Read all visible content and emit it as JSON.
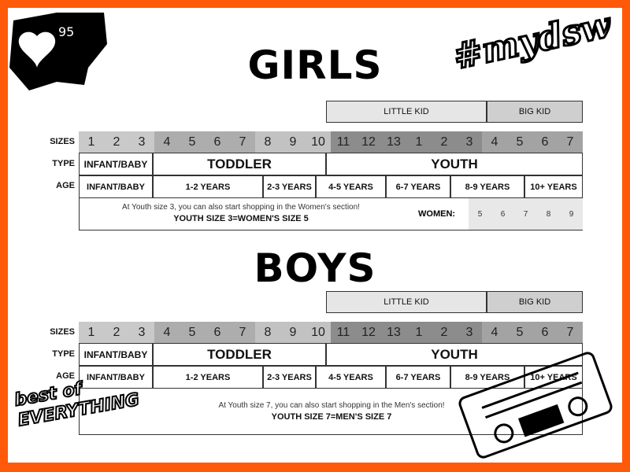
{
  "badge": {
    "likes": "95"
  },
  "hashtag": "#mydsw",
  "logo": "best of EVERYTHING",
  "row_labels": {
    "sizes": "SIZES",
    "type": "TYPE",
    "age": "AGE"
  },
  "groups": {
    "little_kid": "LITTLE KID",
    "big_kid": "BIG KID"
  },
  "sizes": [
    "1",
    "2",
    "3",
    "4",
    "5",
    "6",
    "7",
    "8",
    "9",
    "10",
    "11",
    "12",
    "13",
    "1",
    "2",
    "3",
    "4",
    "5",
    "6",
    "7"
  ],
  "types": {
    "infant": "INFANT/BABY",
    "toddler": "TODDLER",
    "youth": "YOUTH"
  },
  "ages": [
    "INFANT/BABY",
    "1-2 YEARS",
    "2-3 YEARS",
    "4-5 YEARS",
    "6-7 YEARS",
    "8-9 YEARS",
    "10+ YEARS"
  ],
  "girls": {
    "title": "GIRLS",
    "note": "At Youth size 3, you can also start shopping in the Women's section!",
    "equivalence": "YOUTH SIZE 3=WOMEN'S SIZE 5",
    "women_label": "WOMEN:",
    "women_sizes": [
      "5",
      "6",
      "7",
      "8",
      "9"
    ]
  },
  "boys": {
    "title": "BOYS",
    "note": "At Youth size 7, you can also start shopping in the Men's section!",
    "equivalence": "YOUTH SIZE 7=MEN'S SIZE 7"
  },
  "colors": {
    "border": "#ff5a0a",
    "size_1_3": "#c9c9c9",
    "size_4_7": "#adadad",
    "size_8_10": "#c2c2c2",
    "size_11_3": "#8c8c8c",
    "size_4_7_big": "#a3a3a3",
    "little_kid": "#e6e6e6",
    "big_kid": "#cfcfcf"
  }
}
